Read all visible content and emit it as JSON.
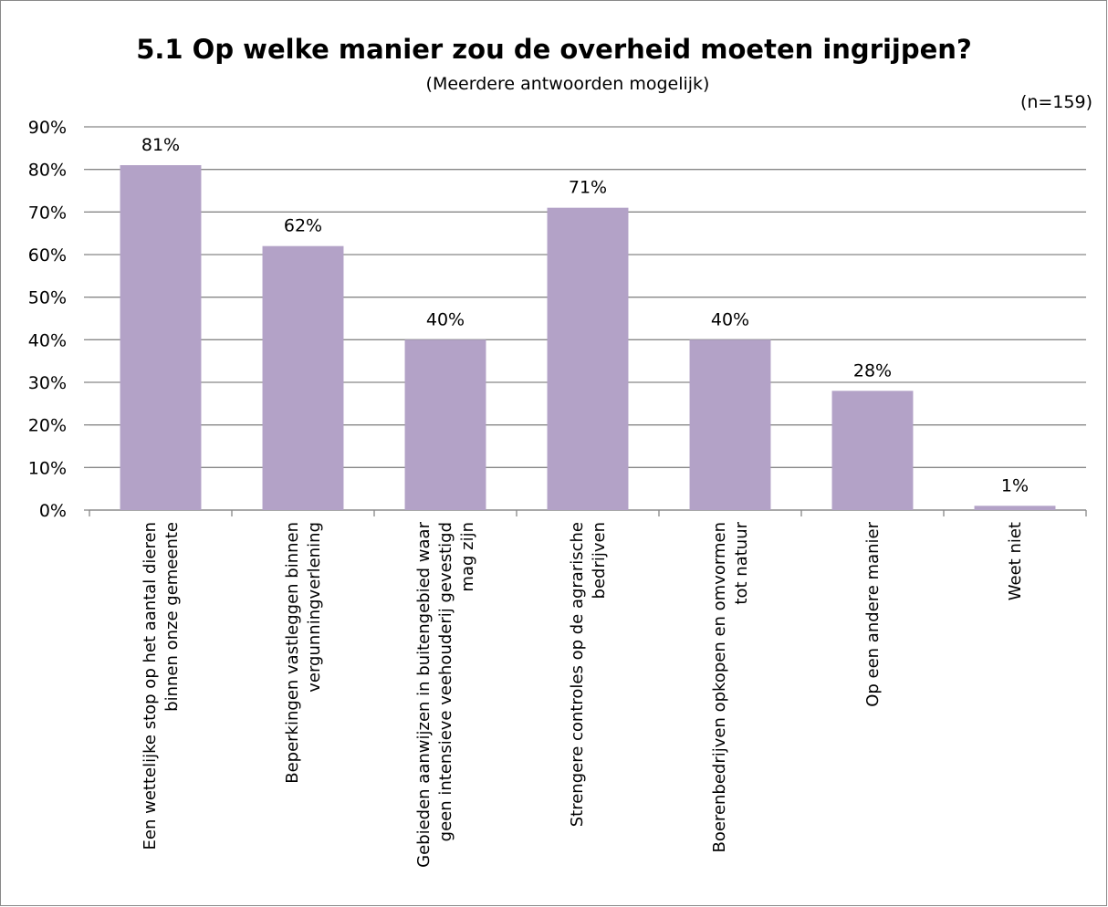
{
  "chart_data": {
    "type": "bar",
    "title": "5.1 Op welke manier zou de overheid moeten ingrijpen?",
    "subtitle": "(Meerdere antwoorden mogelijk)",
    "annotation": "(n=159)",
    "categories": [
      "Een wettelijke stop op het aantal dieren\nbinnen onze gemeente",
      "Beperkingen vastleggen binnen\nvergunningverlening",
      "Gebieden aanwijzen in buitengebied waar\ngeen intensieve veehouderij gevestigd\nmag zijn",
      "Strengere controles op de agrarische\nbedrijven",
      "Boerenbedrijven opkopen en omvormen\ntot natuur",
      "Op een andere manier",
      "Weet niet"
    ],
    "values": [
      81,
      62,
      40,
      71,
      40,
      28,
      1
    ],
    "value_labels": [
      "81%",
      "62%",
      "40%",
      "71%",
      "40%",
      "28%",
      "1%"
    ],
    "color": "#b3a2c7",
    "ylim": [
      0,
      90
    ],
    "yticks": [
      {
        "value": 0,
        "label": "0%"
      },
      {
        "value": 10,
        "label": "10%"
      },
      {
        "value": 20,
        "label": "20%"
      },
      {
        "value": 30,
        "label": "30%"
      },
      {
        "value": 40,
        "label": "40%"
      },
      {
        "value": 50,
        "label": "50%"
      },
      {
        "value": 60,
        "label": "60%"
      },
      {
        "value": 70,
        "label": "70%"
      },
      {
        "value": 80,
        "label": "80%"
      },
      {
        "value": 90,
        "label": "90%"
      }
    ],
    "grid": true
  }
}
